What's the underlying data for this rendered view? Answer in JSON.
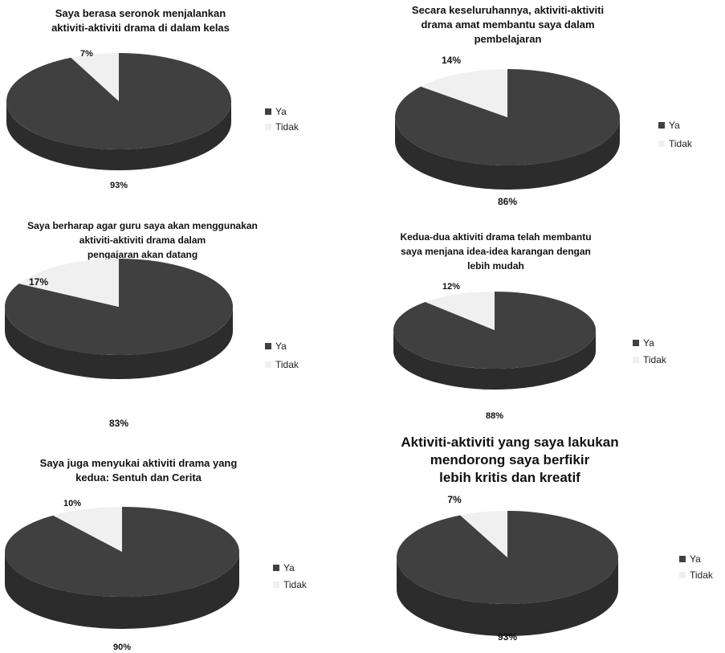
{
  "colors": {
    "ya": "#404040",
    "ya_side": "#2c2c2c",
    "tidak": "#f0f0f0",
    "tidak_side": "#d4d4d4"
  },
  "legend": {
    "ya": "Ya",
    "tidak": "Tidak"
  },
  "chart_data": [
    {
      "type": "pie",
      "title": "Saya berasa seronok menjalankan\naktiviti-aktiviti drama di dalam kelas",
      "categories": [
        "Ya",
        "Tidak"
      ],
      "values": [
        93,
        7
      ],
      "labels": [
        "93%",
        "7%"
      ],
      "legend_position": "right"
    },
    {
      "type": "pie",
      "title": "Secara keseluruhannya, aktiviti-aktiviti\ndrama amat membantu saya dalam\npembelajaran",
      "categories": [
        "Ya",
        "Tidak"
      ],
      "values": [
        86,
        14
      ],
      "labels": [
        "86%",
        "14%"
      ],
      "legend_position": "right"
    },
    {
      "type": "pie",
      "title": "Saya berharap agar guru saya akan menggunakan\naktiviti-aktiviti drama dalam\npengajaran akan datang",
      "categories": [
        "Ya",
        "Tidak"
      ],
      "values": [
        83,
        17
      ],
      "labels": [
        "83%",
        "17%"
      ],
      "legend_position": "right"
    },
    {
      "type": "pie",
      "title": "Kedua-dua aktiviti drama telah membantu\nsaya menjana idea-idea karangan dengan\nlebih mudah",
      "categories": [
        "Ya",
        "Tidak"
      ],
      "values": [
        88,
        12
      ],
      "labels": [
        "88%",
        "12%"
      ],
      "legend_position": "right"
    },
    {
      "type": "pie",
      "title": "Saya juga menyukai aktiviti drama yang\nkedua: Sentuh dan Cerita",
      "categories": [
        "Ya",
        "Tidak"
      ],
      "values": [
        90,
        10
      ],
      "labels": [
        "90%",
        "10%"
      ],
      "legend_position": "right"
    },
    {
      "type": "pie",
      "title": "Aktiviti-aktiviti yang saya lakukan\nmendorong saya berfikir\nlebih kritis dan kreatif",
      "categories": [
        "Ya",
        "Tidak"
      ],
      "values": [
        93,
        7
      ],
      "labels": [
        "93%",
        "7%"
      ],
      "legend_position": "right"
    }
  ]
}
